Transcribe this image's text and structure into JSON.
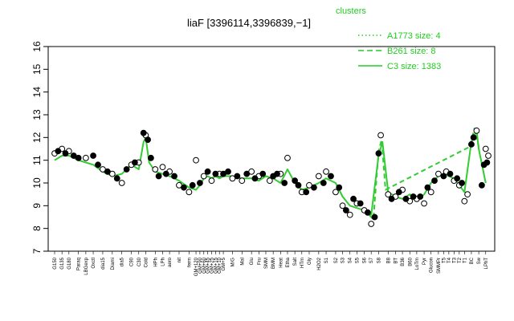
{
  "chart_data": {
    "type": "line",
    "title": "liaF [3396114,3396839,−1]",
    "xlabel": "",
    "ylabel": "",
    "ylim": [
      7,
      16
    ],
    "yticks": [
      7,
      8,
      9,
      10,
      11,
      12,
      13,
      14,
      15,
      16
    ],
    "xlim": [
      0,
      100
    ],
    "colors": {
      "line": "#33cc33",
      "points": "#000000",
      "legend": "#22cc22"
    },
    "legend": {
      "title": "clusters",
      "placement": "top-right",
      "entries": [
        {
          "label": "A1773 size: 4",
          "style": "dotted"
        },
        {
          "label": "B261 size: 8",
          "style": "dashed"
        },
        {
          "label": "C3 size: 1383",
          "style": "solid"
        }
      ]
    },
    "categories": [
      {
        "label": "G150",
        "x": 0
      },
      {
        "label": "G135",
        "x": 1.7
      },
      {
        "label": "G180",
        "x": 3.3
      },
      {
        "label": "Paraq",
        "x": 5.5
      },
      {
        "label": "LBGexp",
        "x": 7.2
      },
      {
        "label": "Oxctl",
        "x": 8.9
      },
      {
        "label": "dia15",
        "x": 11.1
      },
      {
        "label": "Diami",
        "x": 13.3
      },
      {
        "label": "dia5",
        "x": 15.5
      },
      {
        "label": "C90",
        "x": 17.7
      },
      {
        "label": "C30",
        "x": 19.4
      },
      {
        "label": "Cold",
        "x": 21
      },
      {
        "label": "HPh",
        "x": 23.2
      },
      {
        "label": "LPh",
        "x": 24.9
      },
      {
        "label": "aero",
        "x": 26.5
      },
      {
        "label": "nit",
        "x": 28.7
      },
      {
        "label": "ferm",
        "x": 31
      },
      {
        "label": "GM+120",
        "x": 32.6
      },
      {
        "label": "GM+90",
        "x": 33.5
      },
      {
        "label": "GM+60",
        "x": 34.4
      },
      {
        "label": "GM+45",
        "x": 35.3
      },
      {
        "label": "GM+25",
        "x": 36.2
      },
      {
        "label": "GM+15",
        "x": 37.1
      },
      {
        "label": "GM+10",
        "x": 38
      },
      {
        "label": "GM+5",
        "x": 38.9
      },
      {
        "label": "M/G",
        "x": 41
      },
      {
        "label": "Mal",
        "x": 43.2
      },
      {
        "label": "Glu",
        "x": 45.4
      },
      {
        "label": "Fru",
        "x": 47.1
      },
      {
        "label": "SMM",
        "x": 48.7
      },
      {
        "label": "BMM",
        "x": 50.4
      },
      {
        "label": "Heat",
        "x": 52.1
      },
      {
        "label": "Etha",
        "x": 53.7
      },
      {
        "label": "Salt",
        "x": 55.4
      },
      {
        "label": "HTm",
        "x": 57
      },
      {
        "label": "Gly",
        "x": 58.7
      },
      {
        "label": "H2O2",
        "x": 60.9
      },
      {
        "label": "S1",
        "x": 62.6
      },
      {
        "label": "S2",
        "x": 64.8
      },
      {
        "label": "S3",
        "x": 66.4
      },
      {
        "label": "S4",
        "x": 68.1
      },
      {
        "label": "S5",
        "x": 69.7
      },
      {
        "label": "S6",
        "x": 71.4
      },
      {
        "label": "S7",
        "x": 73
      },
      {
        "label": "S8",
        "x": 74.7
      },
      {
        "label": "B8",
        "x": 76.9
      },
      {
        "label": "BT",
        "x": 78.6
      },
      {
        "label": "B36",
        "x": 80.2
      },
      {
        "label": "B60",
        "x": 81.9
      },
      {
        "label": "LoTm",
        "x": 83.5
      },
      {
        "label": "Pyr",
        "x": 85.2
      },
      {
        "label": "Glucon",
        "x": 86.8
      },
      {
        "label": "SMMPr",
        "x": 88.5
      },
      {
        "label": "T5",
        "x": 89.7
      },
      {
        "label": "T4",
        "x": 90.9
      },
      {
        "label": "T3",
        "x": 92.1
      },
      {
        "label": "T2",
        "x": 93.3
      },
      {
        "label": "T1",
        "x": 94.5
      },
      {
        "label": "BC",
        "x": 96.1
      },
      {
        "label": "Sw",
        "x": 97.8
      },
      {
        "label": "LPhT",
        "x": 99.4
      }
    ],
    "series": [
      {
        "style": "solid",
        "points": [
          [
            0,
            11.0
          ],
          [
            1.7,
            11.2
          ],
          [
            3.3,
            11.2
          ],
          [
            5.5,
            11.0
          ],
          [
            7.2,
            10.9
          ],
          [
            8.9,
            10.8
          ],
          [
            11.1,
            10.5
          ],
          [
            13.3,
            10.3
          ],
          [
            15.5,
            10.4
          ],
          [
            17.7,
            10.8
          ],
          [
            19.4,
            10.6
          ],
          [
            20.5,
            11.8
          ],
          [
            21,
            12.0
          ],
          [
            21.8,
            10.9
          ],
          [
            23.2,
            10.5
          ],
          [
            24.9,
            10.4
          ],
          [
            26.5,
            10.3
          ],
          [
            28.7,
            10.1
          ],
          [
            31,
            9.8
          ],
          [
            32.6,
            9.7
          ],
          [
            33.5,
            9.9
          ],
          [
            34.4,
            10.2
          ],
          [
            35.3,
            10.3
          ],
          [
            36.2,
            10.2
          ],
          [
            37.1,
            10.3
          ],
          [
            38,
            10.2
          ],
          [
            38.9,
            10.3
          ],
          [
            41,
            10.3
          ],
          [
            43.2,
            10.2
          ],
          [
            45.4,
            10.2
          ],
          [
            47.1,
            10.1
          ],
          [
            48.7,
            10.3
          ],
          [
            50.4,
            10.2
          ],
          [
            52.1,
            10.0
          ],
          [
            53.7,
            10.6
          ],
          [
            55.4,
            10.0
          ],
          [
            57,
            9.7
          ],
          [
            58.7,
            9.8
          ],
          [
            60.9,
            10.0
          ],
          [
            62.6,
            10.2
          ],
          [
            64.8,
            10.0
          ],
          [
            66.4,
            9.4
          ],
          [
            68.1,
            9.0
          ],
          [
            69.7,
            8.9
          ],
          [
            71.4,
            8.8
          ],
          [
            73,
            8.6
          ],
          [
            74.7,
            11.2
          ],
          [
            75.6,
            11.8
          ],
          [
            76.9,
            9.6
          ],
          [
            78.6,
            9.4
          ],
          [
            80.2,
            9.3
          ],
          [
            81.9,
            9.5
          ],
          [
            83.5,
            9.2
          ],
          [
            85.2,
            9.5
          ],
          [
            86.8,
            10.0
          ],
          [
            88.5,
            10.3
          ],
          [
            89.7,
            10.4
          ],
          [
            90.9,
            10.3
          ],
          [
            92.1,
            10.2
          ],
          [
            93.3,
            9.9
          ],
          [
            94.5,
            9.6
          ],
          [
            96.1,
            11.8
          ],
          [
            97.3,
            12.3
          ],
          [
            97.8,
            11.5
          ],
          [
            99.4,
            10.0
          ]
        ]
      },
      {
        "style": "dashed",
        "points": [
          [
            72.5,
            8.6
          ],
          [
            73.5,
            8.4
          ],
          [
            74.7,
            11.4
          ],
          [
            75.4,
            11.9
          ],
          [
            76.3,
            9.7
          ],
          [
            95.8,
            11.6
          ],
          [
            96.8,
            12.4
          ],
          [
            97.8,
            11.6
          ]
        ]
      }
    ],
    "points_open": [
      [
        0,
        11.3
      ],
      [
        1.7,
        11.5
      ],
      [
        3.3,
        11.4
      ],
      [
        7.2,
        11.1
      ],
      [
        11.1,
        10.6
      ],
      [
        13.3,
        10.4
      ],
      [
        15.5,
        10.0
      ],
      [
        17.7,
        10.8
      ],
      [
        19.4,
        10.9
      ],
      [
        21,
        12.1
      ],
      [
        23.2,
        10.6
      ],
      [
        24.9,
        10.7
      ],
      [
        26.5,
        10.5
      ],
      [
        28.7,
        9.9
      ],
      [
        31,
        9.6
      ],
      [
        32.6,
        11.0
      ],
      [
        34.4,
        10.3
      ],
      [
        36.2,
        10.1
      ],
      [
        38,
        10.4
      ],
      [
        41,
        10.2
      ],
      [
        43.2,
        10.1
      ],
      [
        45.4,
        10.5
      ],
      [
        47.1,
        10.3
      ],
      [
        49.6,
        10.1
      ],
      [
        52.1,
        10.4
      ],
      [
        53.7,
        11.1
      ],
      [
        57,
        9.6
      ],
      [
        58.7,
        9.9
      ],
      [
        60.9,
        10.3
      ],
      [
        62.6,
        10.5
      ],
      [
        64.8,
        9.6
      ],
      [
        66.4,
        9.0
      ],
      [
        68.1,
        8.6
      ],
      [
        69.7,
        9.1
      ],
      [
        71.4,
        8.8
      ],
      [
        73,
        8.2
      ],
      [
        75.2,
        12.1
      ],
      [
        76.9,
        9.5
      ],
      [
        78.6,
        9.4
      ],
      [
        80.2,
        9.7
      ],
      [
        81.9,
        9.2
      ],
      [
        83.5,
        9.3
      ],
      [
        85.2,
        9.1
      ],
      [
        86.8,
        9.6
      ],
      [
        88.5,
        10.4
      ],
      [
        90.3,
        10.5
      ],
      [
        92.1,
        10.1
      ],
      [
        93.3,
        9.9
      ],
      [
        94.5,
        9.2
      ],
      [
        95.2,
        9.5
      ],
      [
        97.3,
        12.3
      ],
      [
        99.4,
        11.5
      ],
      [
        100,
        11.2
      ]
    ],
    "points_filled": [
      [
        0.8,
        11.4
      ],
      [
        2.5,
        11.3
      ],
      [
        4.4,
        11.2
      ],
      [
        5.5,
        11.1
      ],
      [
        8.9,
        11.2
      ],
      [
        10.0,
        10.8
      ],
      [
        12.2,
        10.5
      ],
      [
        14.4,
        10.2
      ],
      [
        16.6,
        10.6
      ],
      [
        18.5,
        10.9
      ],
      [
        20.5,
        12.2
      ],
      [
        21.5,
        11.9
      ],
      [
        22.2,
        11.1
      ],
      [
        24.0,
        10.3
      ],
      [
        25.7,
        10.4
      ],
      [
        27.6,
        10.3
      ],
      [
        29.8,
        9.8
      ],
      [
        31.8,
        9.9
      ],
      [
        33.5,
        10.0
      ],
      [
        35.3,
        10.5
      ],
      [
        37.1,
        10.4
      ],
      [
        38.9,
        10.4
      ],
      [
        40.0,
        10.5
      ],
      [
        42.1,
        10.3
      ],
      [
        44.3,
        10.4
      ],
      [
        46.2,
        10.2
      ],
      [
        48.0,
        10.4
      ],
      [
        50.4,
        10.3
      ],
      [
        51.3,
        10.4
      ],
      [
        53.0,
        10.0
      ],
      [
        55.4,
        10.1
      ],
      [
        56.2,
        9.9
      ],
      [
        58.0,
        9.6
      ],
      [
        59.8,
        9.8
      ],
      [
        62.0,
        10.0
      ],
      [
        63.7,
        10.3
      ],
      [
        65.6,
        9.8
      ],
      [
        67.2,
        8.8
      ],
      [
        68.9,
        9.3
      ],
      [
        70.5,
        9.1
      ],
      [
        72.2,
        8.7
      ],
      [
        73.8,
        8.5
      ],
      [
        74.7,
        11.3
      ],
      [
        77.7,
        9.3
      ],
      [
        79.4,
        9.6
      ],
      [
        81.0,
        9.3
      ],
      [
        82.7,
        9.4
      ],
      [
        84.3,
        9.4
      ],
      [
        86.0,
        9.8
      ],
      [
        87.6,
        10.1
      ],
      [
        89.7,
        10.3
      ],
      [
        91.2,
        10.4
      ],
      [
        92.8,
        10.2
      ],
      [
        93.9,
        10.0
      ],
      [
        96.1,
        11.7
      ],
      [
        96.6,
        12.0
      ],
      [
        98.5,
        9.9
      ],
      [
        99.0,
        10.8
      ],
      [
        99.7,
        10.9
      ]
    ]
  }
}
